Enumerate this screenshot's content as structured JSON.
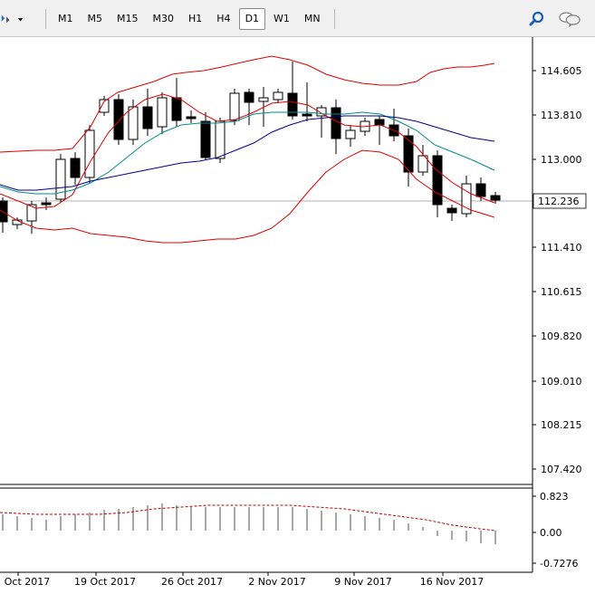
{
  "toolbar": {
    "timeframes": [
      "M1",
      "M5",
      "M15",
      "M30",
      "H1",
      "H4",
      "D1",
      "W1",
      "MN"
    ],
    "active_timeframe": "D1"
  },
  "colors": {
    "bollinger": "#e00000",
    "ma_fast": "#008b8b",
    "ma_slow": "#00008b",
    "bull_fill": "#ffffff",
    "bear_fill": "#000000",
    "macd_hist": "#a8a8a8",
    "macd_signal": "#c00000"
  },
  "chart_data": {
    "type": "candlestick",
    "price_axis": {
      "ticks": [
        "114.605",
        "113.810",
        "113.000",
        "112.236",
        "111.410",
        "110.615",
        "109.820",
        "109.010",
        "108.215",
        "107.420"
      ],
      "current_price": "112.236"
    },
    "date_labels": [
      "Oct 2017",
      "19 Oct 2017",
      "26 Oct 2017",
      "2 Nov 2017",
      "9 Nov 2017",
      "16 Nov 2017"
    ],
    "indicator_axis": {
      "ticks": [
        "0.823",
        "0.00",
        "-0.7276"
      ]
    }
  }
}
